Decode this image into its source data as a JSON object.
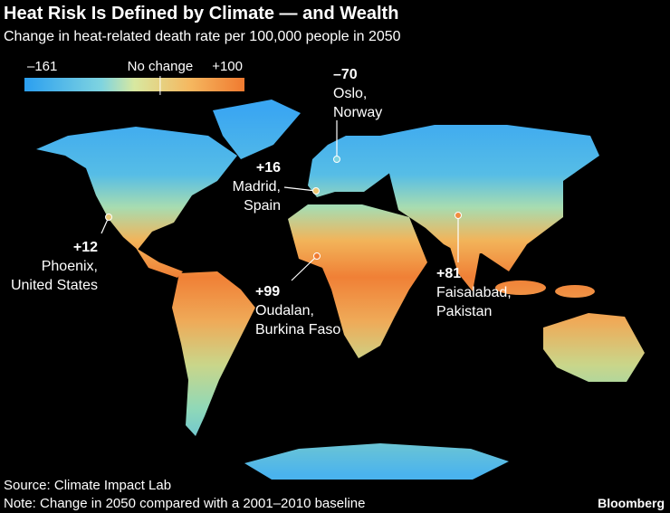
{
  "header": {
    "title": "Heat Risk Is Defined by Climate — and Wealth",
    "subtitle": "Change in heat-related death rate per 100,000 people in 2050"
  },
  "legend": {
    "min": {
      "value": -161,
      "label": "–161"
    },
    "mid": {
      "value": 0,
      "label": "No change"
    },
    "max": {
      "value": 100,
      "label": "+100"
    }
  },
  "annotations": [
    {
      "value": -70,
      "value_label": "–70",
      "lines": [
        "Oslo,",
        "Norway"
      ]
    },
    {
      "value": 16,
      "value_label": "+16",
      "lines": [
        "Madrid,",
        "Spain"
      ]
    },
    {
      "value": 12,
      "value_label": "+12",
      "lines": [
        "Phoenix,",
        "United States"
      ]
    },
    {
      "value": 99,
      "value_label": "+99",
      "lines": [
        "Oudalan,",
        "Burkina Faso"
      ]
    },
    {
      "value": 81,
      "value_label": "+81",
      "lines": [
        "Faisalabad,",
        "Pakistan"
      ]
    }
  ],
  "footer": {
    "source": "Source: Climate Impact Lab",
    "note": "Note: Change in 2050 compared with a 2001–2010 baseline",
    "brand": "Bloomberg"
  }
}
